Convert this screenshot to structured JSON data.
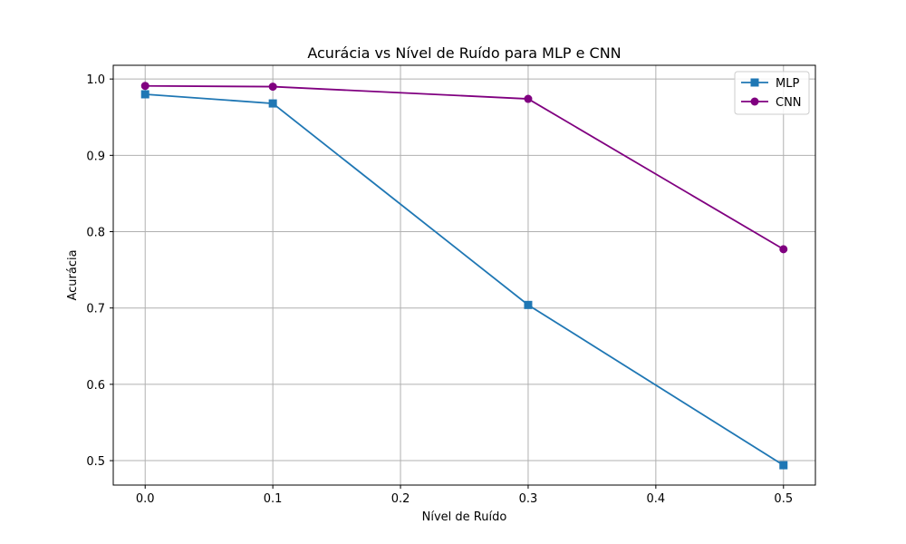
{
  "chart_data": {
    "type": "line",
    "title": "Acurácia vs Nível de Ruído para MLP e CNN",
    "xlabel": "Nível de Ruído",
    "ylabel": "Acurácia",
    "xlim": [
      -0.025,
      0.525
    ],
    "ylim": [
      0.468,
      1.018
    ],
    "xticks": [
      0.0,
      0.1,
      0.2,
      0.3,
      0.4,
      0.5
    ],
    "xtick_labels": [
      "0.0",
      "0.1",
      "0.2",
      "0.3",
      "0.4",
      "0.5"
    ],
    "yticks": [
      0.5,
      0.6,
      0.7,
      0.8,
      0.9,
      1.0
    ],
    "ytick_labels": [
      "0.5",
      "0.6",
      "0.7",
      "0.8",
      "0.9",
      "1.0"
    ],
    "grid": true,
    "legend_position": "top-right",
    "x": [
      0.0,
      0.1,
      0.3,
      0.5
    ],
    "series": [
      {
        "name": "MLP",
        "values": [
          0.98,
          0.968,
          0.704,
          0.494
        ],
        "color": "#1f77b4",
        "marker": "square"
      },
      {
        "name": "CNN",
        "values": [
          0.991,
          0.99,
          0.974,
          0.777
        ],
        "color": "#800080",
        "marker": "circle"
      }
    ]
  }
}
